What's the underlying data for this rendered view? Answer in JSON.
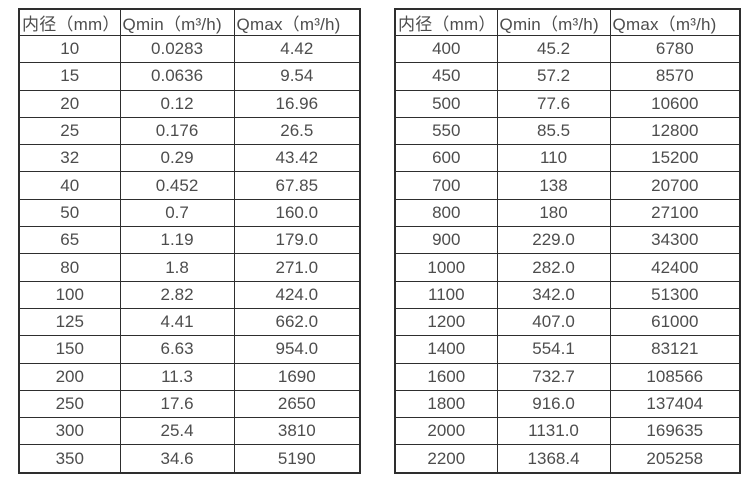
{
  "tables": [
    {
      "name": "flow-spec-small-diameters",
      "headers": [
        "内径（mm）",
        "Qmin（m³/h)",
        "Qmax（m³/h)"
      ],
      "rows": [
        [
          "10",
          "0.0283",
          "4.42"
        ],
        [
          "15",
          "0.0636",
          "9.54"
        ],
        [
          "20",
          "0.12",
          "16.96"
        ],
        [
          "25",
          "0.176",
          "26.5"
        ],
        [
          "32",
          "0.29",
          "43.42"
        ],
        [
          "40",
          "0.452",
          "67.85"
        ],
        [
          "50",
          "0.7",
          "160.0"
        ],
        [
          "65",
          "1.19",
          "179.0"
        ],
        [
          "80",
          "1.8",
          "271.0"
        ],
        [
          "100",
          "2.82",
          "424.0"
        ],
        [
          "125",
          "4.41",
          "662.0"
        ],
        [
          "150",
          "6.63",
          "954.0"
        ],
        [
          "200",
          "11.3",
          "1690"
        ],
        [
          "250",
          "17.6",
          "2650"
        ],
        [
          "300",
          "25.4",
          "3810"
        ],
        [
          "350",
          "34.6",
          "5190"
        ]
      ]
    },
    {
      "name": "flow-spec-large-diameters",
      "headers": [
        "内径（mm）",
        "Qmin（m³/h)",
        "Qmax（m³/h)"
      ],
      "rows": [
        [
          "400",
          "45.2",
          "6780"
        ],
        [
          "450",
          "57.2",
          "8570"
        ],
        [
          "500",
          "77.6",
          "10600"
        ],
        [
          "550",
          "85.5",
          "12800"
        ],
        [
          "600",
          "110",
          "15200"
        ],
        [
          "700",
          "138",
          "20700"
        ],
        [
          "800",
          "180",
          "27100"
        ],
        [
          "900",
          "229.0",
          "34300"
        ],
        [
          "1000",
          "282.0",
          "42400"
        ],
        [
          "1100",
          "342.0",
          "51300"
        ],
        [
          "1200",
          "407.0",
          "61000"
        ],
        [
          "1400",
          "554.1",
          "83121"
        ],
        [
          "1600",
          "732.7",
          "108566"
        ],
        [
          "1800",
          "916.0",
          "137404"
        ],
        [
          "2000",
          "1131.0",
          "169635"
        ],
        [
          "2200",
          "1368.4",
          "205258"
        ]
      ]
    }
  ]
}
